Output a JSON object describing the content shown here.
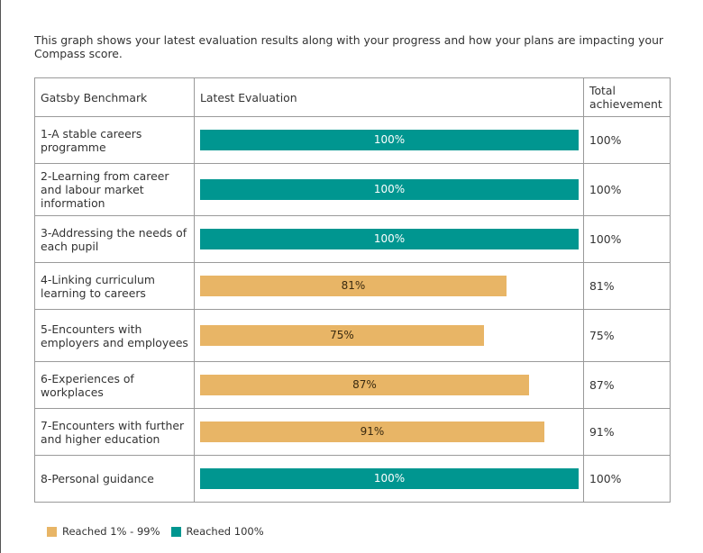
{
  "intro_text": "This graph shows your latest evaluation results along with your progress and how your plans are impacting your Compass score.",
  "colors": {
    "full": "#009690",
    "partial": "#E8B566"
  },
  "chart_data": {
    "type": "bar",
    "orientation": "horizontal",
    "columns": [
      "Gatsby Benchmark",
      "Latest Evaluation",
      "Total achievement"
    ],
    "categories": [
      "1-A stable careers programme",
      "2-Learning from career and labour market information",
      "3-Addressing the needs of each pupil",
      "4-Linking curriculum learning to careers",
      "5-Encounters with employers and employees",
      "6-Experiences of workplaces",
      "7-Encounters with further and higher education",
      "8-Personal guidance"
    ],
    "values": [
      100,
      100,
      100,
      81,
      75,
      87,
      91,
      100
    ],
    "value_labels": [
      "100%",
      "100%",
      "100%",
      "81%",
      "75%",
      "87%",
      "91%",
      "100%"
    ],
    "total_labels": [
      "100%",
      "100%",
      "100%",
      "81%",
      "75%",
      "87%",
      "91%",
      "100%"
    ],
    "xlim": [
      0,
      100
    ],
    "legend": [
      {
        "label": "Reached 1% - 99%",
        "color": "#E8B566"
      },
      {
        "label": "Reached 100%",
        "color": "#009690"
      }
    ],
    "legend_position": "bottom-left"
  }
}
